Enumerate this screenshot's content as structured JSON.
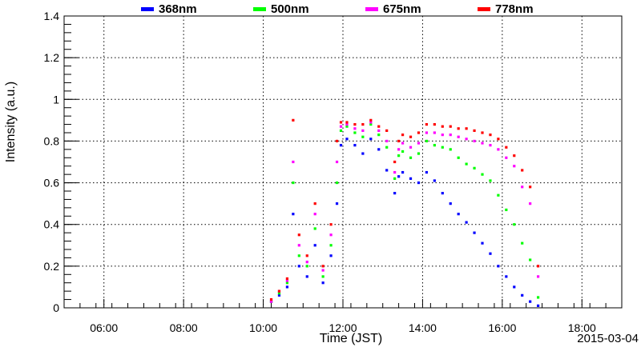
{
  "chart_data": {
    "type": "scatter",
    "title": "",
    "xlabel": "Time (JST)",
    "ylabel": "Intensity (a.u.)",
    "date_label": "2015-03-04",
    "x_unit": "hours JST",
    "xlim": [
      5.0,
      19.0
    ],
    "ylim": [
      0,
      1.4
    ],
    "x_ticks": [
      6,
      8,
      10,
      12,
      14,
      16,
      18
    ],
    "x_tick_labels": [
      "06:00",
      "08:00",
      "10:00",
      "12:00",
      "14:00",
      "16:00",
      "18:00"
    ],
    "y_ticks": [
      0,
      0.2,
      0.4,
      0.6,
      0.8,
      1,
      1.2,
      1.4
    ],
    "y_tick_labels": [
      "0",
      "0.2",
      "0.4",
      "0.6",
      "0.8",
      "1",
      "1.2",
      "1.4"
    ],
    "grid": true,
    "legend_position": "top",
    "series": [
      {
        "name": "368nm",
        "color": "#0000ff",
        "x": [
          10.2,
          10.4,
          10.6,
          10.75,
          10.9,
          11.1,
          11.3,
          11.5,
          11.7,
          11.85,
          11.95,
          12.1,
          12.3,
          12.5,
          12.7,
          12.9,
          13.1,
          13.3,
          13.4,
          13.5,
          13.7,
          13.9,
          14.1,
          14.3,
          14.5,
          14.7,
          14.9,
          15.1,
          15.3,
          15.5,
          15.7,
          15.9,
          16.1,
          16.3,
          16.5,
          16.7,
          16.9
        ],
        "y": [
          0.03,
          0.06,
          0.1,
          0.45,
          0.2,
          0.15,
          0.3,
          0.12,
          0.25,
          0.5,
          0.78,
          0.81,
          0.78,
          0.74,
          0.81,
          0.76,
          0.66,
          0.55,
          0.63,
          0.65,
          0.62,
          0.6,
          0.65,
          0.61,
          0.55,
          0.5,
          0.45,
          0.41,
          0.36,
          0.31,
          0.26,
          0.2,
          0.15,
          0.1,
          0.06,
          0.03,
          0.01
        ]
      },
      {
        "name": "500nm",
        "color": "#00ff00",
        "x": [
          10.2,
          10.4,
          10.6,
          10.75,
          10.9,
          11.1,
          11.3,
          11.5,
          11.7,
          11.85,
          11.95,
          12.1,
          12.3,
          12.5,
          12.7,
          12.9,
          13.1,
          13.3,
          13.4,
          13.5,
          13.7,
          13.9,
          14.1,
          14.3,
          14.5,
          14.7,
          14.9,
          15.1,
          15.3,
          15.5,
          15.7,
          15.9,
          16.1,
          16.3,
          16.5,
          16.7,
          16.9
        ],
        "y": [
          0.03,
          0.07,
          0.12,
          0.6,
          0.25,
          0.2,
          0.38,
          0.15,
          0.3,
          0.6,
          0.85,
          0.87,
          0.84,
          0.82,
          0.88,
          0.83,
          0.77,
          0.62,
          0.73,
          0.75,
          0.72,
          0.74,
          0.8,
          0.78,
          0.77,
          0.76,
          0.72,
          0.69,
          0.67,
          0.64,
          0.61,
          0.54,
          0.47,
          0.4,
          0.31,
          0.23,
          0.05
        ]
      },
      {
        "name": "675nm",
        "color": "#ff00ff",
        "x": [
          10.2,
          10.4,
          10.6,
          10.75,
          10.9,
          11.1,
          11.3,
          11.5,
          11.7,
          11.85,
          11.95,
          12.1,
          12.3,
          12.5,
          12.7,
          12.9,
          13.1,
          13.3,
          13.4,
          13.5,
          13.7,
          13.9,
          14.1,
          14.3,
          14.5,
          14.7,
          14.9,
          15.1,
          15.3,
          15.5,
          15.7,
          15.9,
          16.1,
          16.3,
          16.5,
          16.7,
          16.9
        ],
        "y": [
          0.03,
          0.08,
          0.13,
          0.7,
          0.3,
          0.22,
          0.45,
          0.18,
          0.35,
          0.7,
          0.87,
          0.88,
          0.86,
          0.85,
          0.89,
          0.85,
          0.8,
          0.65,
          0.76,
          0.79,
          0.77,
          0.79,
          0.84,
          0.84,
          0.83,
          0.83,
          0.82,
          0.81,
          0.8,
          0.79,
          0.78,
          0.76,
          0.72,
          0.68,
          0.58,
          0.5,
          0.15
        ]
      },
      {
        "name": "778nm",
        "color": "#ff0000",
        "x": [
          10.2,
          10.4,
          10.6,
          10.75,
          10.9,
          11.1,
          11.3,
          11.5,
          11.7,
          11.85,
          11.95,
          12.1,
          12.3,
          12.5,
          12.7,
          12.9,
          13.1,
          13.3,
          13.4,
          13.5,
          13.7,
          13.9,
          14.1,
          14.3,
          14.5,
          14.7,
          14.9,
          15.1,
          15.3,
          15.5,
          15.7,
          15.9,
          16.1,
          16.3,
          16.5,
          16.7,
          16.9
        ],
        "y": [
          0.04,
          0.08,
          0.14,
          0.9,
          0.35,
          0.25,
          0.5,
          0.2,
          0.4,
          0.8,
          0.89,
          0.89,
          0.88,
          0.88,
          0.9,
          0.87,
          0.85,
          0.7,
          0.8,
          0.83,
          0.82,
          0.84,
          0.88,
          0.88,
          0.87,
          0.87,
          0.86,
          0.86,
          0.85,
          0.84,
          0.83,
          0.81,
          0.77,
          0.73,
          0.66,
          0.58,
          0.2
        ]
      }
    ]
  }
}
